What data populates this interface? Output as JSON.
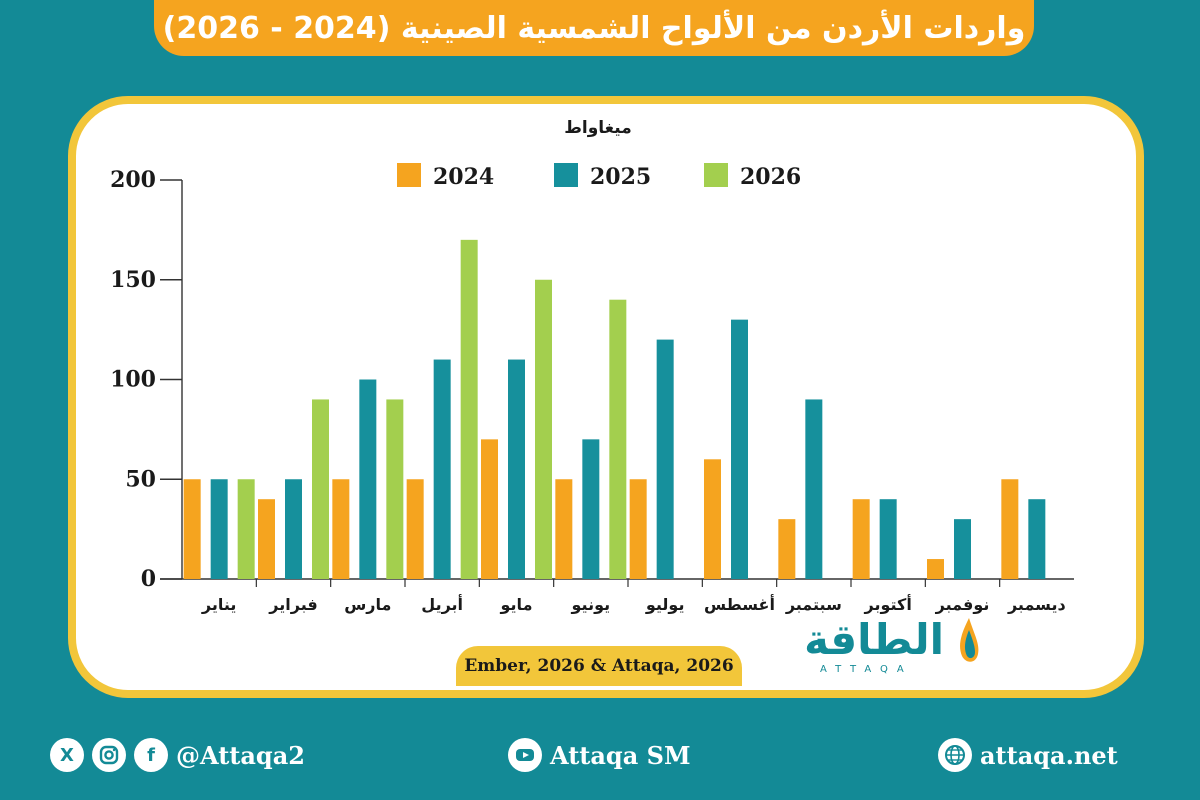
{
  "header": {
    "title": "واردات الأردن من الألواح الشمسية الصينية (2024 - 2026)"
  },
  "chart_data": {
    "type": "bar",
    "title": "واردات الأردن من الألواح الشمسية الصينية (2024 - 2026)",
    "ylabel": "ميغاواط",
    "ylim": [
      0,
      200
    ],
    "yticks": [
      "0",
      "50",
      "100",
      "150",
      "200"
    ],
    "categories": [
      "يناير",
      "فبراير",
      "مارس",
      "أبريل",
      "مايو",
      "يونيو",
      "يوليو",
      "أغسطس",
      "سبتمبر",
      "أكتوبر",
      "نوفمبر",
      "ديسمبر"
    ],
    "series": [
      {
        "name": "2024",
        "color": "#f5a41f",
        "values": [
          50,
          40,
          50,
          50,
          70,
          50,
          50,
          60,
          30,
          40,
          10,
          50
        ]
      },
      {
        "name": "2025",
        "color": "#16909c",
        "values": [
          50,
          50,
          100,
          110,
          110,
          70,
          120,
          130,
          90,
          40,
          30,
          40
        ]
      },
      {
        "name": "2026",
        "color": "#a3cf4e",
        "values": [
          50,
          90,
          90,
          170,
          150,
          140,
          null,
          null,
          null,
          null,
          null,
          null
        ]
      }
    ],
    "legend": "top-center",
    "grid": false
  },
  "source": "Ember, 2026 & Attaqa, 2026",
  "logo": {
    "arabic": "الطاقة",
    "latin": "ATTAQA"
  },
  "footer": {
    "social_handle": "@Attaqa2",
    "youtube": "Attaqa SM",
    "website": "attaqa.net"
  },
  "colors": {
    "teal": "#138a96",
    "orange": "#f5a41f",
    "green": "#a3cf4e",
    "gold": "#f2c63a"
  }
}
